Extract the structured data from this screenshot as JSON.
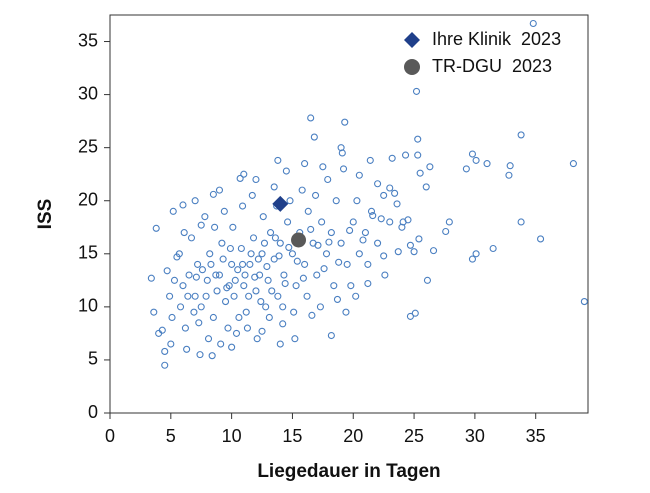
{
  "chart_data": {
    "type": "scatter",
    "xlabel": "Liegedauer in Tagen",
    "ylabel": "ISS",
    "xlim": [
      0,
      39.3
    ],
    "ylim": [
      0,
      37.5
    ],
    "xticks": [
      0,
      5,
      10,
      15,
      20,
      25,
      30,
      35
    ],
    "yticks": [
      0,
      5,
      10,
      15,
      20,
      25,
      30,
      35
    ],
    "legend": "upper right",
    "series": [
      {
        "color": "#4a7fc1",
        "marker": "open-circle",
        "x": [
          34.8,
          25.2,
          16.5,
          19.3,
          16.8,
          33.8,
          25.3,
          19,
          19.1,
          24.3,
          25.3,
          29.8,
          30.1,
          31,
          32.9,
          38.1,
          32.8,
          29.3,
          26.3,
          26,
          33.8,
          35.4,
          39,
          29.8,
          30.1,
          31.5,
          27.6,
          27.9,
          26.6,
          25,
          24.7,
          25.4,
          26.1,
          25.1,
          24.7,
          18.2,
          19.4,
          14,
          15.2,
          4.5,
          4.5,
          5,
          3.4,
          3.6,
          4.3,
          4,
          3.8,
          5.2,
          6,
          7.5,
          8.5,
          10.7,
          11,
          13.8,
          13.5,
          22,
          23,
          23.4,
          23.6,
          21.6,
          22.3,
          6,
          6.5,
          7,
          7.2,
          7.5,
          8,
          8.2,
          8.5,
          8.8,
          9,
          9.2,
          9.5,
          9.8,
          10,
          10.2,
          10.5,
          10.8,
          11,
          11.2,
          11.5,
          11.8,
          12,
          12.3,
          12.5,
          12.8,
          13,
          13.2,
          13.5,
          13.8,
          14,
          14.3,
          14.6,
          15,
          15.3,
          15.6,
          16,
          16.3,
          16.7,
          17,
          17.4,
          17.8,
          18.2,
          18.6,
          19,
          19.5,
          20,
          20.5,
          21,
          21.5,
          22,
          23,
          24,
          24.5,
          5.5,
          5.8,
          6.2,
          6.7,
          7.3,
          7.8,
          8.1,
          8.6,
          9.1,
          9.4,
          9.7,
          10.1,
          10.4,
          10.9,
          11.3,
          11.7,
          12.1,
          12.6,
          13.1,
          13.7,
          14.2,
          14.8,
          15.1,
          15.8,
          16.2,
          16.9,
          17.3,
          17.9,
          18.4,
          19.2,
          19.8,
          20.3,
          21.2,
          22.5,
          4.9,
          5.1,
          5.3,
          5.7,
          6.1,
          6.4,
          6.9,
          7.1,
          7.6,
          7.9,
          8.3,
          8.7,
          9.3,
          9.6,
          9.9,
          10.3,
          10.6,
          10.9,
          11.1,
          11.4,
          11.6,
          11.9,
          12.2,
          12.4,
          12.7,
          12.9,
          13.3,
          13.6,
          13.9,
          14.4,
          14.7,
          15.4,
          15.9,
          16.5,
          17.1,
          17.6,
          18,
          18.8,
          19.7,
          20.8,
          7,
          9,
          12,
          14.5,
          16,
          17.5,
          20.5,
          21.4,
          4.7,
          6.3,
          7.4,
          8.4,
          10,
          12.5,
          14.2,
          16.6,
          18.7,
          20.2,
          21.2,
          22.6,
          23.7,
          24.1,
          25.5,
          23.2,
          22.5
        ],
        "values": [
          36.7,
          30.3,
          27.8,
          27.4,
          26,
          26.2,
          25.8,
          25,
          24.5,
          24.3,
          24.3,
          24.4,
          23.8,
          23.5,
          23.3,
          23.5,
          22.4,
          23,
          23.2,
          21.3,
          18,
          16.4,
          10.5,
          14.5,
          15,
          15.5,
          17.1,
          18,
          15.3,
          15.2,
          15.8,
          16.4,
          12.5,
          9.4,
          9.1,
          7.3,
          9.5,
          6.5,
          7,
          4.5,
          5.8,
          6.5,
          12.7,
          9.5,
          7.8,
          7.5,
          17.4,
          19,
          19.6,
          17.7,
          20.6,
          22.1,
          22.5,
          23.8,
          21.3,
          21.6,
          21.2,
          20.7,
          19.7,
          18.6,
          18.3,
          12,
          13,
          11,
          14,
          10,
          12.5,
          15,
          9,
          11.5,
          13,
          16,
          10.5,
          12,
          14,
          11,
          13.5,
          15.5,
          12,
          9.5,
          14,
          16.5,
          11.5,
          13,
          15,
          10,
          12.5,
          17,
          14.5,
          11,
          16,
          13,
          18,
          15,
          12,
          17,
          14,
          19,
          16,
          13,
          18,
          15,
          17,
          20,
          16,
          14,
          18,
          15,
          17,
          19,
          16,
          18,
          17.5,
          18.2,
          14.7,
          10,
          8,
          16.5,
          8.5,
          18.5,
          7,
          17.5,
          6.5,
          19,
          8,
          17.5,
          7.5,
          19.5,
          8,
          20.5,
          7,
          18.5,
          9,
          19.5,
          10,
          20,
          9.5,
          21,
          11,
          20.5,
          10,
          22,
          12,
          23,
          12,
          20,
          14,
          14.8,
          11,
          9,
          12.5,
          15,
          17,
          11,
          9.5,
          12.8,
          13.5,
          11,
          14,
          13,
          14.5,
          11.8,
          15.5,
          12.5,
          9,
          14,
          13,
          11,
          15,
          12.8,
          14.5,
          10.5,
          16,
          13.8,
          11.5,
          16.5,
          14.8,
          12.2,
          15.6,
          14.3,
          12.7,
          17.3,
          15.8,
          13.6,
          16.1,
          14.2,
          17.2,
          16.3,
          20,
          21,
          22,
          22.8,
          23.5,
          23.2,
          22.4,
          23.8,
          13.4,
          6,
          5.5,
          5.4,
          6.2,
          7.7,
          8.4,
          9.2,
          10.7,
          11,
          12.2,
          13,
          15.2,
          18,
          22.6,
          24,
          20.5
        ]
      },
      {
        "name": "Ihre Klinik  2023",
        "color": "#1f3f8a",
        "marker": "diamond",
        "x": [
          14
        ],
        "values": [
          19.7
        ]
      },
      {
        "name": "TR-DGU  2023",
        "color": "#595959",
        "marker": "circle",
        "x": [
          15.5
        ],
        "values": [
          16.3
        ]
      }
    ]
  }
}
